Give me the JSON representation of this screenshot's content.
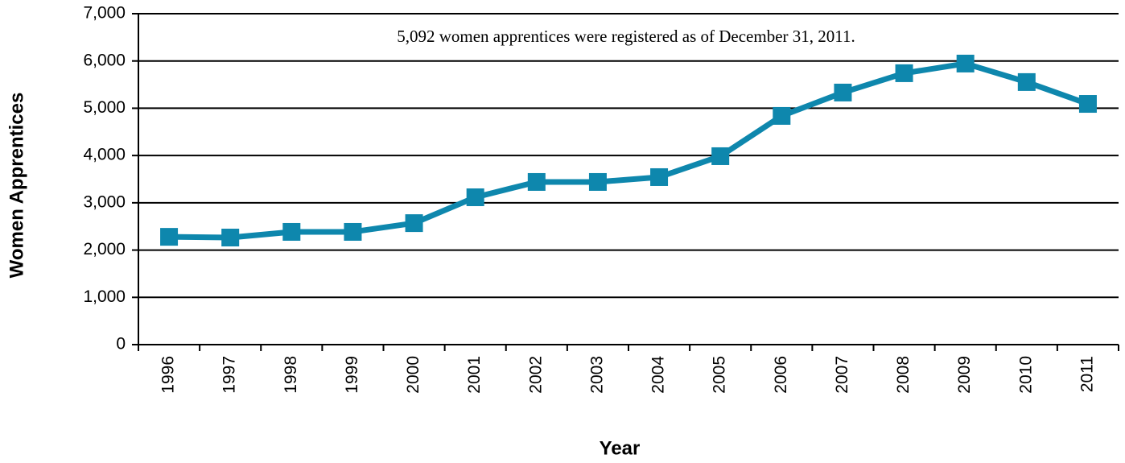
{
  "chart_data": {
    "type": "line",
    "annotation": "5,092 women apprentices were registered as of December 31, 2011.",
    "x_label": "Year",
    "y_label": "Women Apprentices",
    "categories": [
      "1996",
      "1997",
      "1998",
      "1999",
      "2000",
      "2001",
      "2002",
      "2003",
      "2004",
      "2005",
      "2006",
      "2007",
      "2008",
      "2009",
      "2010",
      "2011"
    ],
    "series": [
      {
        "name": "Women Apprentices",
        "color": "#0e87ad",
        "values": [
          2280,
          2265,
          2385,
          2385,
          2570,
          3117,
          3441,
          3441,
          3543,
          3986,
          4838,
          5332,
          5741,
          5945,
          5554,
          5092
        ]
      }
    ],
    "ylim": [
      0,
      7000
    ],
    "yticks": [
      0,
      {
        "value": 1000,
        "label": "1,000"
      },
      {
        "value": 2000,
        "label": "2,000"
      },
      {
        "value": 3000,
        "label": "3,000"
      },
      {
        "value": 4000,
        "label": "4,000"
      },
      {
        "value": 5000,
        "label": "5,000"
      },
      {
        "value": 6000,
        "label": "6,000"
      },
      {
        "value": 7000,
        "label": "7,000"
      }
    ],
    "grid": true
  }
}
